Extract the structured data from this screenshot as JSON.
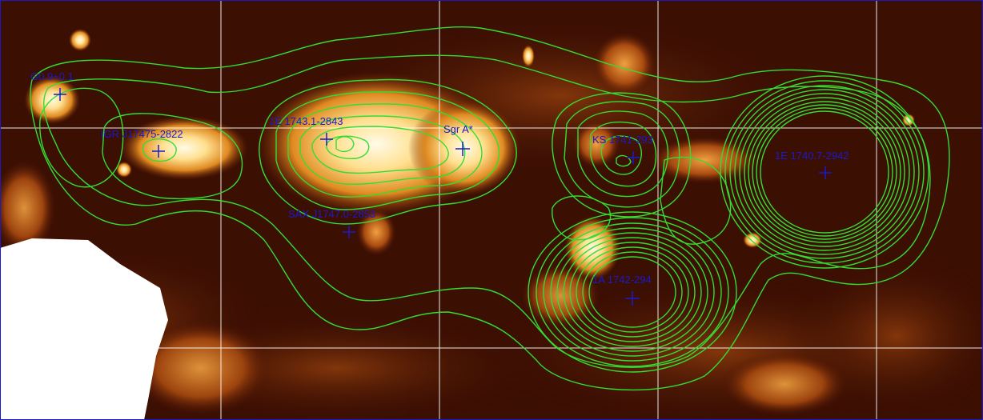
{
  "image": {
    "colormap": "heat",
    "contour_color": "#33dd33",
    "marker_color": "#1a1acc",
    "grid_color": "#ffffff"
  },
  "sources": [
    {
      "id": "s1",
      "label": "G0.9+0.1"
    },
    {
      "id": "s2",
      "label": "IGR J17475-2822"
    },
    {
      "id": "s3",
      "label": "1E 1743.1-2843"
    },
    {
      "id": "s4",
      "label": "Sgr A*"
    },
    {
      "id": "s5",
      "label": "SAX J1747.0-2853"
    },
    {
      "id": "s6",
      "label": "KS 1741-293"
    },
    {
      "id": "s7",
      "label": "1E 1740.7-2942"
    },
    {
      "id": "s8",
      "label": "1A 1742-294"
    }
  ]
}
